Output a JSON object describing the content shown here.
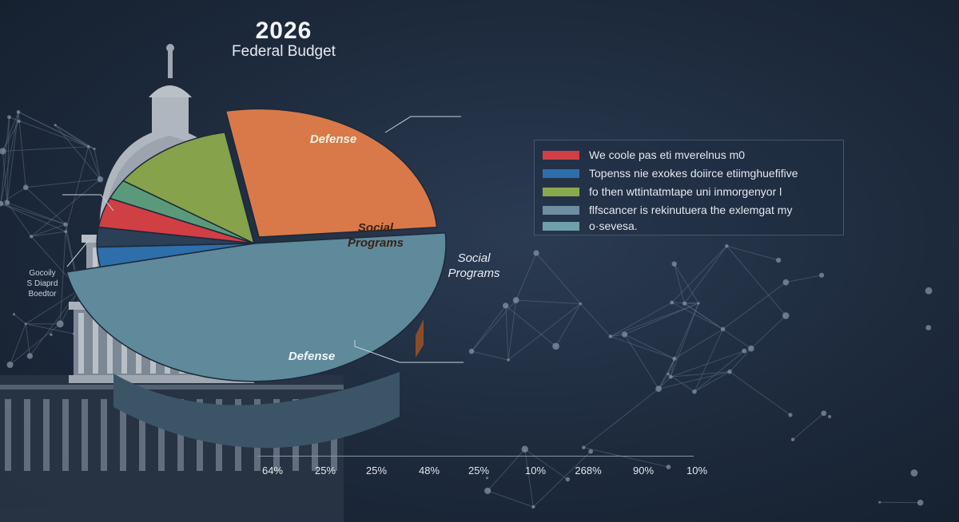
{
  "header": {
    "year": "2026",
    "title": "Federal Budget"
  },
  "left_note": {
    "lines": [
      "Gocoily",
      "S Diaprd",
      "Boedtor"
    ]
  },
  "chart_data": {
    "type": "pie",
    "title": "2026 Federal Budget",
    "slices": [
      {
        "label": "Defense",
        "value": 34,
        "color": "#5e8a9b"
      },
      {
        "label": "Social Programs",
        "value": 19,
        "color": "#d9794a"
      },
      {
        "label": "Defense",
        "value": 9,
        "color": "#86a24a"
      },
      {
        "label": "",
        "value": 2,
        "color": "#5a9a7b"
      },
      {
        "label": "",
        "value": 3,
        "color": "#cf3f44"
      },
      {
        "label": "",
        "value": 2,
        "color": "#2b3f57"
      },
      {
        "label": "",
        "value": 2,
        "color": "#2e6eab"
      }
    ],
    "side_labels": [
      "Social",
      "Programs"
    ],
    "legend": {
      "placement": "right",
      "entries": [
        {
          "text": "We coole pas eti mverelnus m0",
          "color": "#cf3f44"
        },
        {
          "text": "Topenss nie exokes doiirce etiimghuefifive",
          "color": "#2e6eab"
        },
        {
          "text": "fo then wttintatmtape uni inmorgenyor l",
          "color": "#8aa84d"
        },
        {
          "text": "flfscancer is rekinutuera the exlemgat my",
          "color": "#6f8ea0"
        },
        {
          "text": "o·sevesa.",
          "color": "#6f9fa8"
        }
      ]
    },
    "axis": {
      "ticks": [
        "64%",
        "25%",
        "25%",
        "48%",
        "25%",
        "10%",
        "268%",
        "90%",
        "10%"
      ]
    }
  }
}
